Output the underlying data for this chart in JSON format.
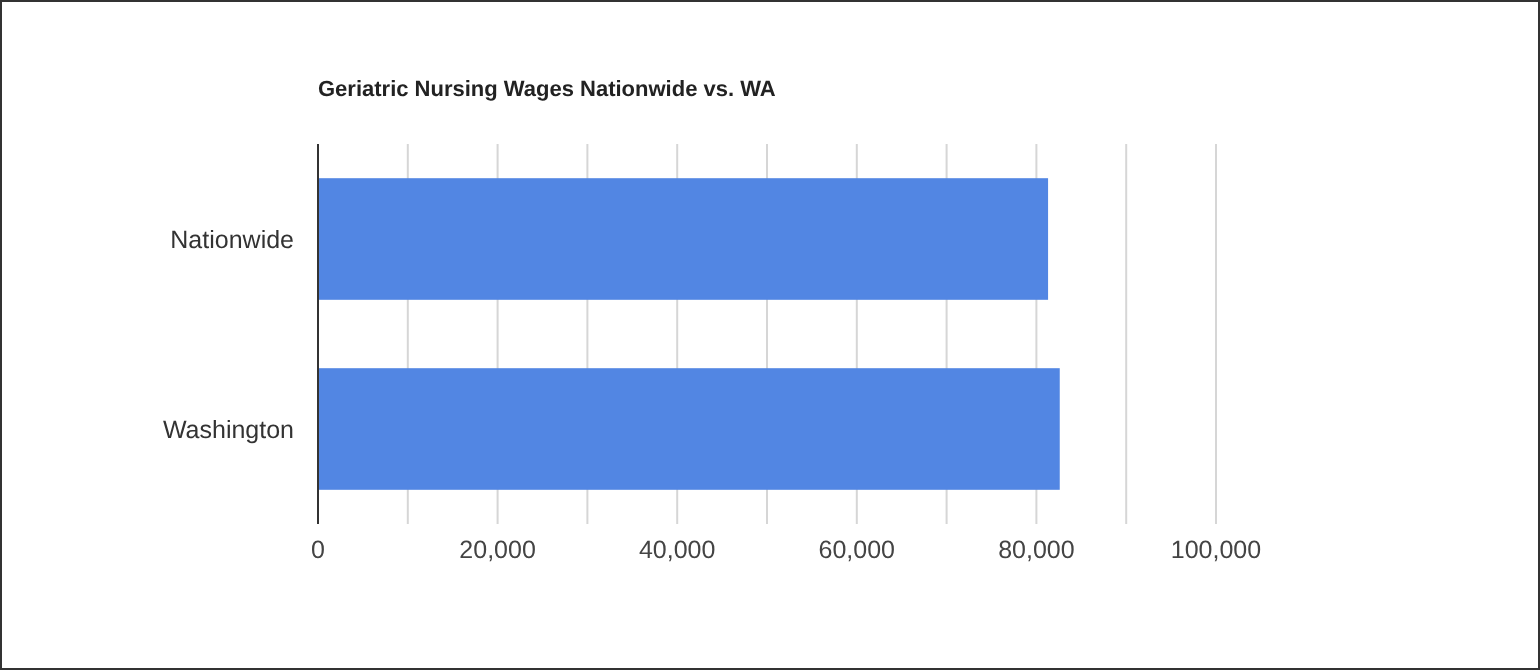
{
  "chart_data": {
    "type": "bar",
    "orientation": "horizontal",
    "title": "Geriatric Nursing Wages Nationwide vs. WA",
    "categories": [
      "Nationwide",
      "Washington"
    ],
    "values": [
      81300,
      82600
    ],
    "color": "#5286e3",
    "xlim": [
      0,
      100000
    ],
    "xticks": [
      0,
      {
        "value": 10000,
        "label": null
      },
      {
        "value": 20000,
        "label": "20,000"
      },
      {
        "value": 30000,
        "label": null
      },
      {
        "value": 40000,
        "label": "40,000"
      },
      {
        "value": 50000,
        "label": null
      },
      {
        "value": 60000,
        "label": "60,000"
      },
      {
        "value": 70000,
        "label": null
      },
      {
        "value": 80000,
        "label": "80,000"
      },
      {
        "value": 90000,
        "label": null
      },
      {
        "value": 100000,
        "label": "100,000"
      }
    ],
    "grid": "x"
  }
}
